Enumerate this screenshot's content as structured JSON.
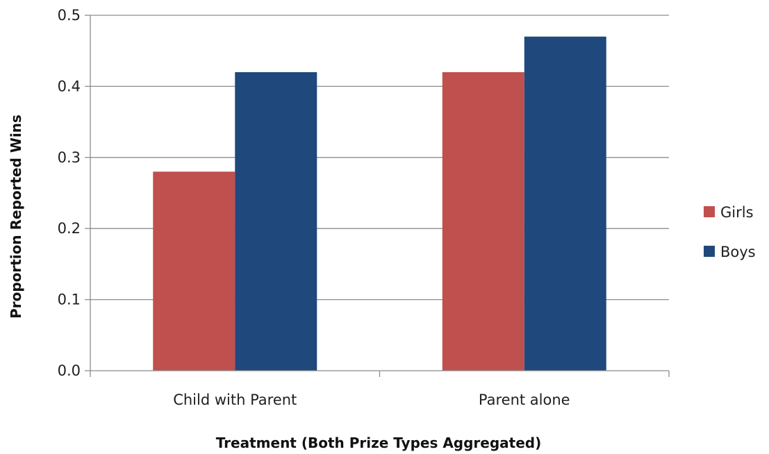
{
  "chart_data": {
    "type": "bar",
    "title": "",
    "xlabel": "Treatment (Both Prize Types Aggregated)",
    "ylabel": "Proportion Reported Wins",
    "categories": [
      "Child with Parent",
      "Parent alone"
    ],
    "series": [
      {
        "name": "Girls",
        "values": [
          0.28,
          0.42
        ],
        "color": "#c0504d"
      },
      {
        "name": "Boys",
        "values": [
          0.42,
          0.47
        ],
        "color": "#1f497d"
      }
    ],
    "ylim": [
      0,
      0.5
    ],
    "yticks": [
      0.0,
      0.1,
      0.2,
      0.3,
      0.4,
      0.5
    ],
    "ytick_labels": [
      "0.0",
      "0.1",
      "0.2",
      "0.3",
      "0.4",
      "0.5"
    ],
    "grid": true,
    "legend_position": "right"
  }
}
